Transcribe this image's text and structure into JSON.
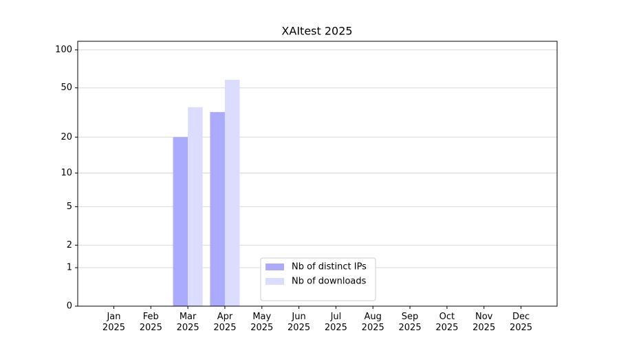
{
  "chart_data": {
    "type": "bar",
    "title": "XAItest 2025",
    "categories": [
      "Jan 2025",
      "Feb 2025",
      "Mar 2025",
      "Apr 2025",
      "May 2025",
      "Jun 2025",
      "Jul 2025",
      "Aug 2025",
      "Sep 2025",
      "Oct 2025",
      "Nov 2025",
      "Dec 2025"
    ],
    "series": [
      {
        "name": "Nb of distinct IPs",
        "color": "#aaaaff",
        "values": [
          0,
          0,
          20,
          32,
          0,
          0,
          0,
          0,
          0,
          0,
          0,
          0
        ]
      },
      {
        "name": "Nb of downloads",
        "color": "#dcdcff",
        "values": [
          0,
          0,
          35,
          58,
          0,
          0,
          0,
          0,
          0,
          0,
          0,
          0
        ]
      }
    ],
    "yscale": "symlog",
    "ylim": [
      0,
      117
    ],
    "yticks": [
      0,
      1,
      2,
      5,
      10,
      20,
      50,
      100
    ],
    "grid": true,
    "legend": "lower center"
  }
}
